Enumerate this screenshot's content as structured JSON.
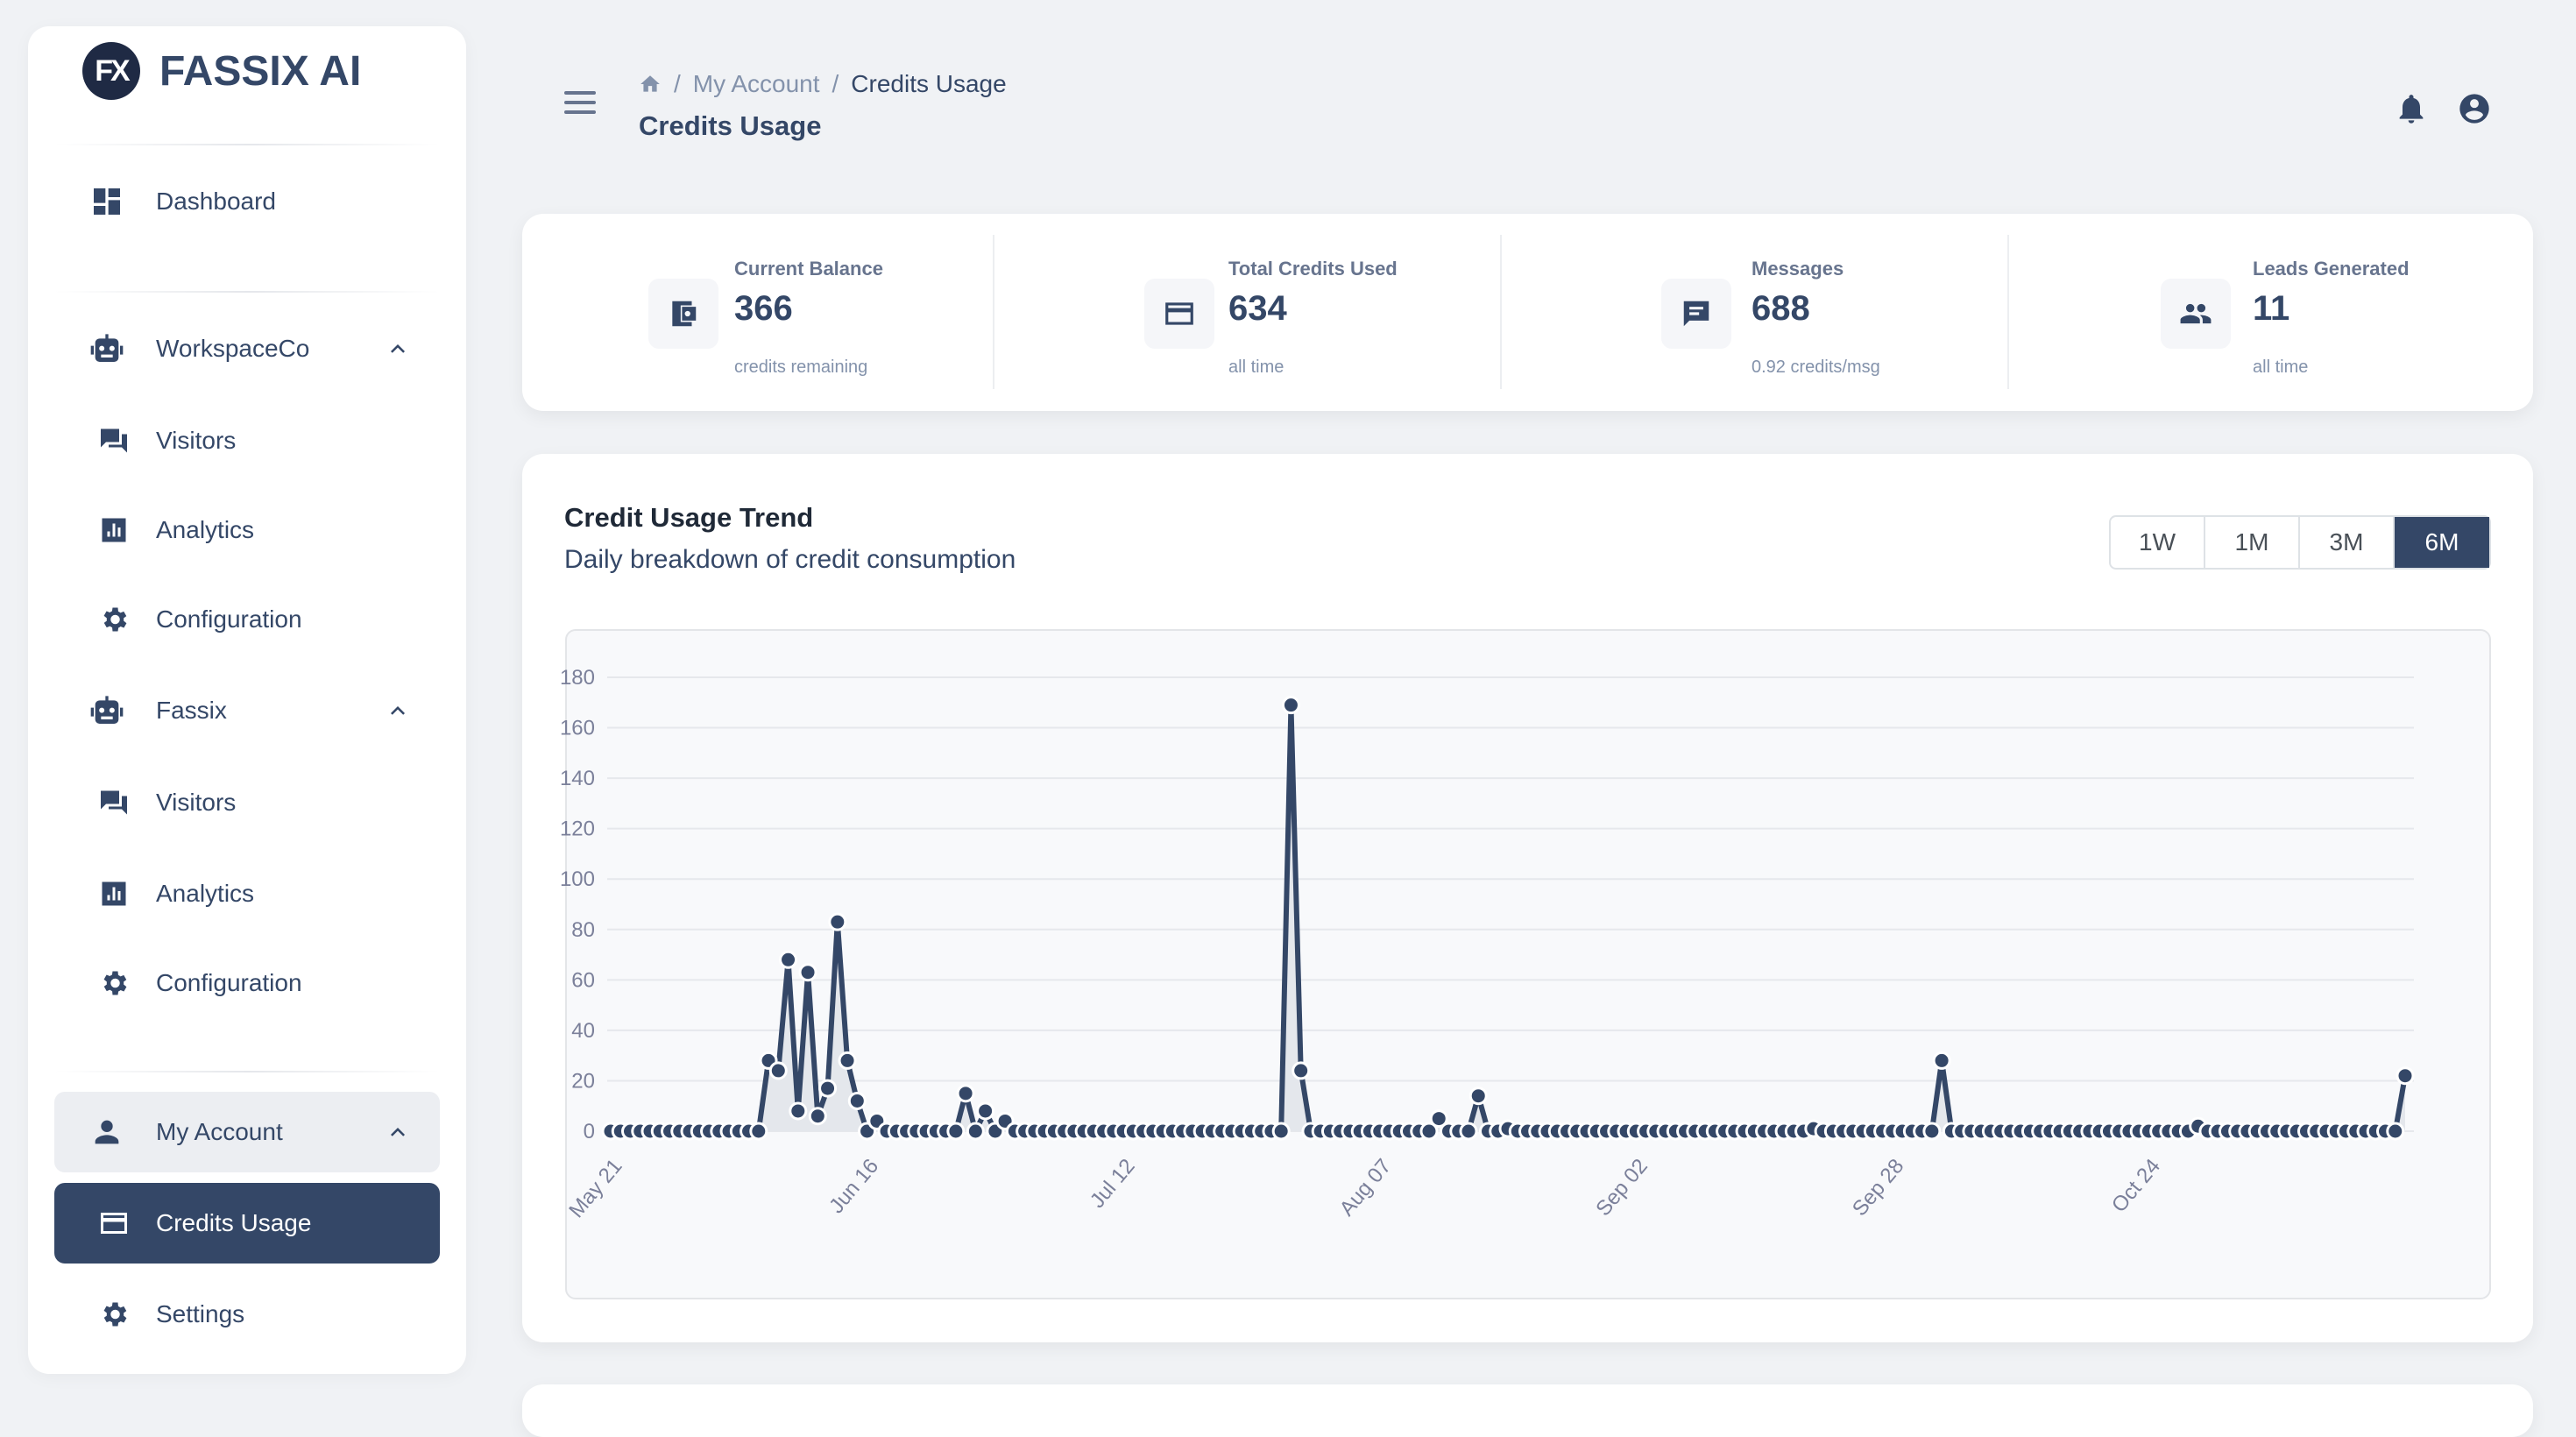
{
  "brand": {
    "logo_mark": "FX",
    "name": "FASSIX AI"
  },
  "sidebar": {
    "items": [
      {
        "label": "Dashboard",
        "icon": "dashboard-icon"
      },
      {
        "label": "WorkspaceCo",
        "icon": "robot-icon",
        "expanded": true
      },
      {
        "label": "Visitors",
        "icon": "chat-icon"
      },
      {
        "label": "Analytics",
        "icon": "bar-chart-icon"
      },
      {
        "label": "Configuration",
        "icon": "gear-icon"
      },
      {
        "label": "Fassix",
        "icon": "robot-icon",
        "expanded": true
      },
      {
        "label": "Visitors",
        "icon": "chat-icon"
      },
      {
        "label": "Analytics",
        "icon": "bar-chart-icon"
      },
      {
        "label": "Configuration",
        "icon": "gear-icon"
      },
      {
        "label": "My Account",
        "icon": "person-icon",
        "expanded": true
      },
      {
        "label": "Credits Usage",
        "icon": "credit-card-icon",
        "active": true
      },
      {
        "label": "Settings",
        "icon": "gear-icon"
      }
    ]
  },
  "header": {
    "breadcrumb": [
      "My Account",
      "Credits Usage"
    ],
    "title": "Credits Usage"
  },
  "stats": [
    {
      "label": "Current Balance",
      "value": "366",
      "sub": "credits remaining",
      "icon": "wallet-icon"
    },
    {
      "label": "Total Credits Used",
      "value": "634",
      "sub": "all time",
      "icon": "credit-card-icon"
    },
    {
      "label": "Messages",
      "value": "688",
      "sub": "0.92 credits/msg",
      "icon": "message-icon"
    },
    {
      "label": "Leads Generated",
      "value": "11",
      "sub": "all time",
      "icon": "people-icon"
    }
  ],
  "trend": {
    "title": "Credit Usage Trend",
    "subtitle": "Daily breakdown of credit consumption",
    "ranges": [
      "1W",
      "1M",
      "3M",
      "6M"
    ],
    "selected_range": "6M"
  },
  "colors": {
    "accent": "#344767",
    "background": "#f0f2f5"
  },
  "chart_data": {
    "type": "area",
    "x_start": "May 21",
    "x_end": "Nov 19",
    "x_ticks": [
      "May 21",
      "Jun 16",
      "Jul 12",
      "Aug 07",
      "Sep 02",
      "Sep 28",
      "Oct 24"
    ],
    "y_ticks": [
      0,
      20,
      40,
      60,
      80,
      100,
      120,
      140,
      160,
      180
    ],
    "ylim": [
      0,
      180
    ],
    "grid": true,
    "nonzero_points": {
      "16": 28,
      "17": 24,
      "18": 68,
      "19": 8,
      "20": 63,
      "21": 6,
      "22": 17,
      "23": 83,
      "24": 28,
      "25": 12,
      "27": 4,
      "36": 15,
      "38": 8,
      "40": 4,
      "69": 169,
      "70": 24,
      "84": 5,
      "88": 14,
      "91": 1,
      "122": 1,
      "135": 28,
      "161": 2,
      "182": 22
    },
    "num_days": 183
  }
}
